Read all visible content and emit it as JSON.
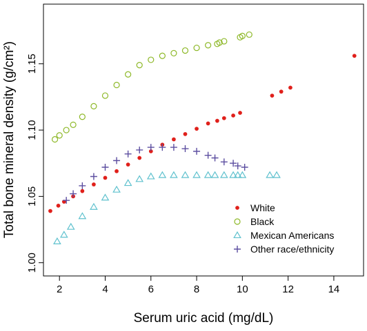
{
  "chart_data": {
    "type": "scatter",
    "xlabel": "Serum uric acid (mg/dL)",
    "ylabel": "Total bone mineral density (g/cm²)",
    "xlim": [
      1.3,
      15.3
    ],
    "ylim": [
      0.99,
      1.195
    ],
    "x_ticks": [
      "2",
      "4",
      "6",
      "8",
      "10",
      "12",
      "14"
    ],
    "y_ticks": [
      "1.00",
      "1.05",
      "1.10",
      "1.15"
    ],
    "legend_position": "bottom-right",
    "grid": false,
    "series": [
      {
        "name": "White",
        "marker": "filled-circle",
        "color": "#e0201b",
        "x": [
          1.6,
          1.95,
          2.2,
          2.6,
          3.0,
          3.5,
          4.0,
          4.5,
          5.0,
          5.5,
          6.0,
          6.5,
          7.0,
          7.5,
          8.0,
          8.5,
          8.9,
          9.2,
          9.6,
          9.9,
          11.3,
          11.7,
          12.1,
          14.9
        ],
        "y": [
          1.039,
          1.043,
          1.046,
          1.05,
          1.054,
          1.059,
          1.064,
          1.069,
          1.074,
          1.079,
          1.084,
          1.089,
          1.093,
          1.097,
          1.101,
          1.105,
          1.107,
          1.109,
          1.111,
          1.113,
          1.126,
          1.129,
          1.132,
          1.156
        ]
      },
      {
        "name": "Black",
        "marker": "open-circle",
        "color": "#8db827",
        "x": [
          1.8,
          2.0,
          2.3,
          2.6,
          3.0,
          3.5,
          4.0,
          4.5,
          5.0,
          5.5,
          6.0,
          6.5,
          7.0,
          7.5,
          8.0,
          8.5,
          8.9,
          9.0,
          9.2,
          9.9,
          10.0,
          10.3
        ],
        "y": [
          1.093,
          1.096,
          1.1,
          1.104,
          1.11,
          1.118,
          1.126,
          1.134,
          1.142,
          1.149,
          1.153,
          1.156,
          1.158,
          1.16,
          1.162,
          1.164,
          1.165,
          1.166,
          1.167,
          1.17,
          1.171,
          1.172
        ]
      },
      {
        "name": "Mexican Americans",
        "marker": "open-triangle",
        "color": "#5fc1ce",
        "x": [
          1.9,
          2.2,
          2.5,
          3.0,
          3.5,
          4.0,
          4.5,
          5.0,
          5.5,
          6.0,
          6.5,
          7.0,
          7.5,
          8.0,
          8.5,
          8.8,
          9.2,
          9.6,
          9.8,
          10.0,
          11.2,
          11.5
        ],
        "y": [
          1.016,
          1.021,
          1.027,
          1.035,
          1.042,
          1.049,
          1.055,
          1.06,
          1.063,
          1.065,
          1.066,
          1.066,
          1.066,
          1.066,
          1.066,
          1.066,
          1.066,
          1.066,
          1.066,
          1.066,
          1.066,
          1.066
        ]
      },
      {
        "name": "Other race/ethnicity",
        "marker": "plus",
        "color": "#5c4ea0",
        "x": [
          2.3,
          2.6,
          3.0,
          3.5,
          4.0,
          4.5,
          5.0,
          5.5,
          6.0,
          6.5,
          7.0,
          7.5,
          8.0,
          8.5,
          8.8,
          9.2,
          9.6,
          9.8,
          10.1
        ],
        "y": [
          1.047,
          1.052,
          1.058,
          1.065,
          1.072,
          1.077,
          1.082,
          1.085,
          1.087,
          1.087,
          1.087,
          1.086,
          1.084,
          1.081,
          1.079,
          1.076,
          1.075,
          1.073,
          1.072
        ]
      }
    ]
  }
}
